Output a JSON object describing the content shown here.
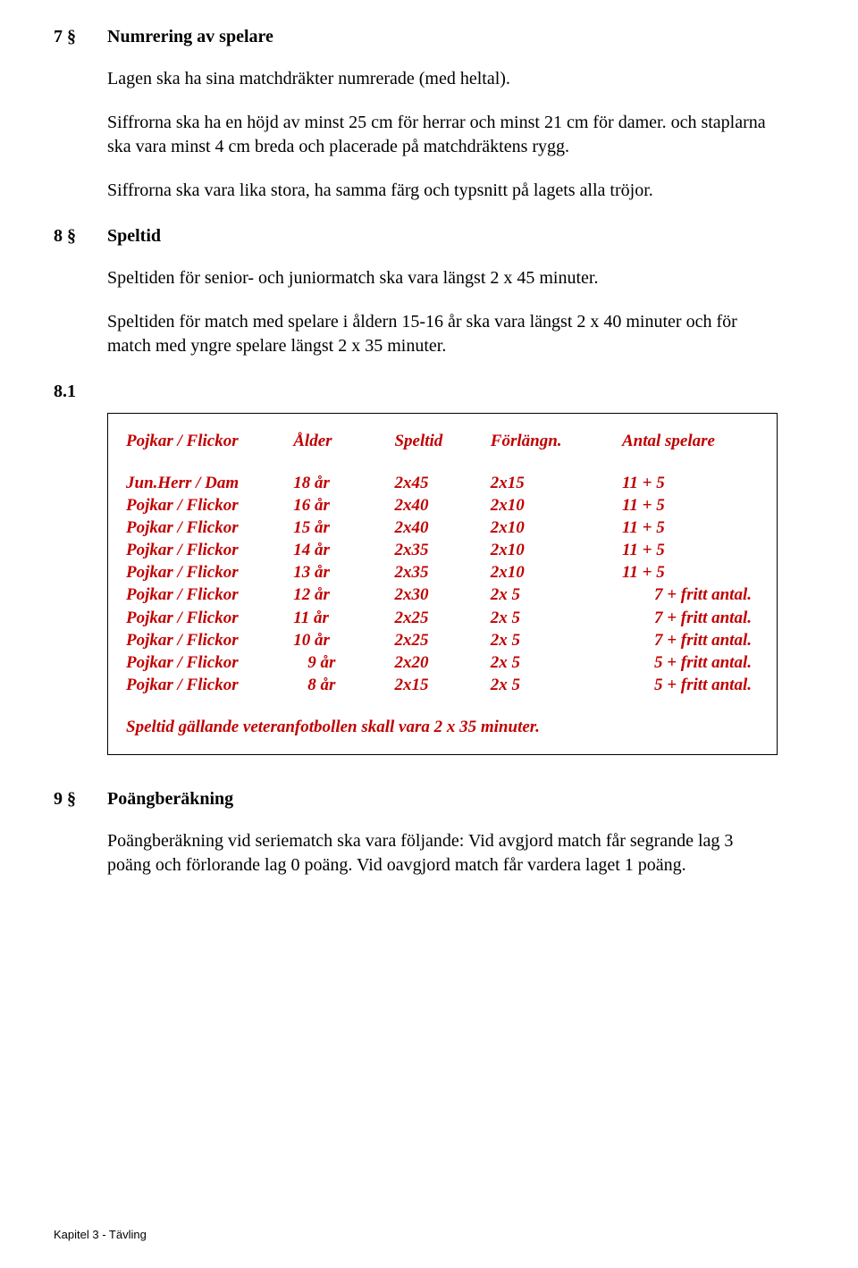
{
  "s7": {
    "num": "7 §",
    "title": "Numrering av spelare",
    "p1": "Lagen ska ha sina matchdräkter numrerade (med heltal).",
    "p2": "Siffrorna ska ha en höjd av minst 25 cm för herrar och minst 21 cm för damer. och staplarna ska vara minst 4 cm breda och placerade på matchdräktens rygg.",
    "p3": "Siffrorna ska vara lika stora, ha samma färg och typsnitt på lagets alla tröjor."
  },
  "s8": {
    "num": "8 §",
    "title": "Speltid",
    "p1": "Speltiden för senior- och juniormatch ska vara längst 2 x 45 minuter.",
    "p2": "Speltiden för match med spelare i åldern 15-16 år ska vara längst 2 x 40 minuter och för match med yngre spelare längst 2 x 35 minuter."
  },
  "s81": {
    "num": "8.1",
    "headers": {
      "c1": "Pojkar / Flickor",
      "c2": "Ålder",
      "c3": "Speltid",
      "c4": "Förlängn.",
      "c5": "Antal spelare"
    },
    "rows": [
      {
        "c1": "Jun.Herr / Dam",
        "c2": "18 år",
        "c2pad": false,
        "c3": "2x45",
        "c4": "2x15",
        "c5": "11 + 5",
        "c5pad": false
      },
      {
        "c1": "Pojkar / Flickor",
        "c2": "16 år",
        "c2pad": false,
        "c3": "2x40",
        "c4": "2x10",
        "c5": "11 + 5",
        "c5pad": false
      },
      {
        "c1": "Pojkar / Flickor",
        "c2": "15 år",
        "c2pad": false,
        "c3": "2x40",
        "c4": "2x10",
        "c5": "11 + 5",
        "c5pad": false
      },
      {
        "c1": "Pojkar / Flickor",
        "c2": "14 år",
        "c2pad": false,
        "c3": "2x35",
        "c4": "2x10",
        "c5": "11 + 5",
        "c5pad": false
      },
      {
        "c1": "Pojkar / Flickor",
        "c2": "13 år",
        "c2pad": false,
        "c3": "2x35",
        "c4": "2x10",
        "c5": "11 + 5",
        "c5pad": false
      },
      {
        "c1": "Pojkar / Flickor",
        "c2": "12 år",
        "c2pad": false,
        "c3": "2x30",
        "c4": "2x 5",
        "c5": "7 + fritt antal.",
        "c5pad": true
      },
      {
        "c1": "Pojkar / Flickor",
        "c2": "11 år",
        "c2pad": false,
        "c3": "2x25",
        "c4": "2x 5",
        "c5": "7 + fritt antal.",
        "c5pad": true
      },
      {
        "c1": "Pojkar / Flickor",
        "c2": "10 år",
        "c2pad": false,
        "c3": "2x25",
        "c4": "2x 5",
        "c5": "7 + fritt antal.",
        "c5pad": true
      },
      {
        "c1": "Pojkar / Flickor",
        "c2": "9 år",
        "c2pad": true,
        "c3": "2x20",
        "c4": "2x 5",
        "c5": "5 + fritt antal.",
        "c5pad": true
      },
      {
        "c1": "Pojkar / Flickor",
        "c2": "8 år",
        "c2pad": true,
        "c3": "2x15",
        "c4": "2x 5",
        "c5": "5 + fritt antal.",
        "c5pad": true
      }
    ],
    "veteran": "Speltid gällande veteranfotbollen skall vara 2 x 35 minuter."
  },
  "s9": {
    "num": "9 §",
    "title": "Poängberäkning",
    "p1": "Poängberäkning vid seriematch ska vara följande: Vid avgjord match får segrande lag 3 poäng och förlorande lag 0 poäng. Vid oavgjord match får vardera laget 1 poäng."
  },
  "footer": "Kapitel 3 - Tävling"
}
